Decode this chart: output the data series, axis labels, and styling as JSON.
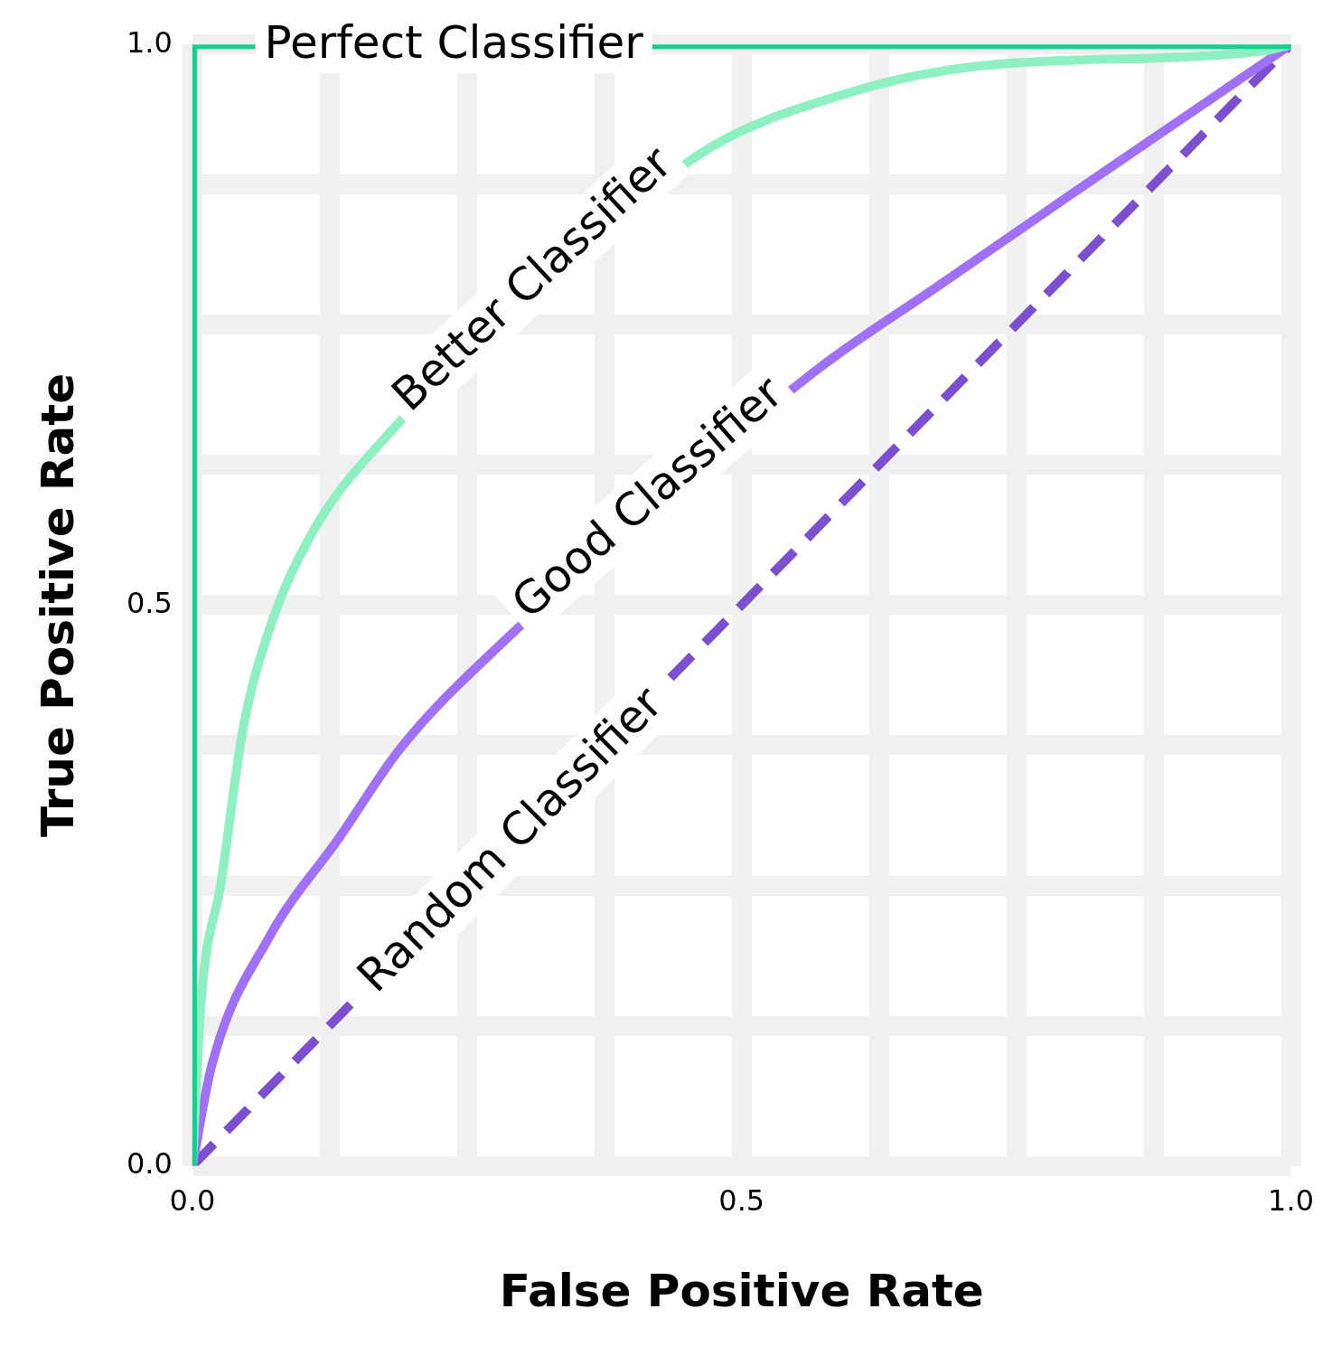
{
  "chart_data": {
    "type": "line",
    "xlabel": "False Positive Rate",
    "ylabel": "True Positive Rate",
    "xlim": [
      0,
      1
    ],
    "ylim": [
      0,
      1
    ],
    "xticks": [
      {
        "value": 0,
        "label": "0.0"
      },
      {
        "value": 0.125,
        "label": null
      },
      {
        "value": 0.25,
        "label": null
      },
      {
        "value": 0.375,
        "label": null
      },
      {
        "value": 0.5,
        "label": "0.5"
      },
      {
        "value": 0.625,
        "label": null
      },
      {
        "value": 0.75,
        "label": null
      },
      {
        "value": 0.875,
        "label": null
      },
      {
        "value": 1,
        "label": "1.0"
      }
    ],
    "yticks": [
      {
        "value": 0,
        "label": "0.0"
      },
      {
        "value": 0.125,
        "label": null
      },
      {
        "value": 0.25,
        "label": null
      },
      {
        "value": 0.375,
        "label": null
      },
      {
        "value": 0.5,
        "label": "0.5"
      },
      {
        "value": 0.625,
        "label": null
      },
      {
        "value": 0.75,
        "label": null
      },
      {
        "value": 0.875,
        "label": null
      },
      {
        "value": 1,
        "label": "1.0"
      }
    ],
    "grid": true,
    "legend": false,
    "marker": "none",
    "series": [
      {
        "color": "#0fd18f",
        "x": [
          0,
          0,
          1
        ],
        "values": [
          0,
          1,
          1
        ]
      },
      {
        "color": "#8ef0c0",
        "x": [
          0,
          0.008,
          0.026,
          0.046,
          0.07,
          0.11,
          0.166,
          0.31,
          0.46,
          0.598,
          0.718,
          0.974,
          1
        ],
        "values": [
          0,
          0.147,
          0.252,
          0.389,
          0.478,
          0.566,
          0.639,
          null,
          0.901,
          0.957,
          0.981,
          0.994,
          1
        ]
      },
      {
        "color": "#a070f8",
        "x": [
          0,
          0.018,
          0.07,
          0.134,
          0.19,
          0.286,
          0.398,
          0.566,
          0.678,
          0.798,
          1
        ],
        "values": [
          0,
          0.091,
          0.204,
          0.293,
          0.373,
          0.47,
          null,
          0.708,
          0.784,
          0.865,
          1
        ]
      },
      {
        "color": "#7b4fd0",
        "x": [
          0,
          1
        ],
        "values": [
          0,
          1
        ],
        "line_style": "dashed"
      }
    ],
    "annotations": [
      {
        "text": "Perfect Classifier",
        "x": 0.238,
        "y": 1
      },
      {
        "text": "Better Classifier",
        "x": 0.31,
        "y": 0.79
      },
      {
        "text": "Good Classifier",
        "x": 0.415,
        "y": 0.595
      },
      {
        "text": "Random Classifier",
        "x": 0.29,
        "y": 0.29
      }
    ]
  }
}
